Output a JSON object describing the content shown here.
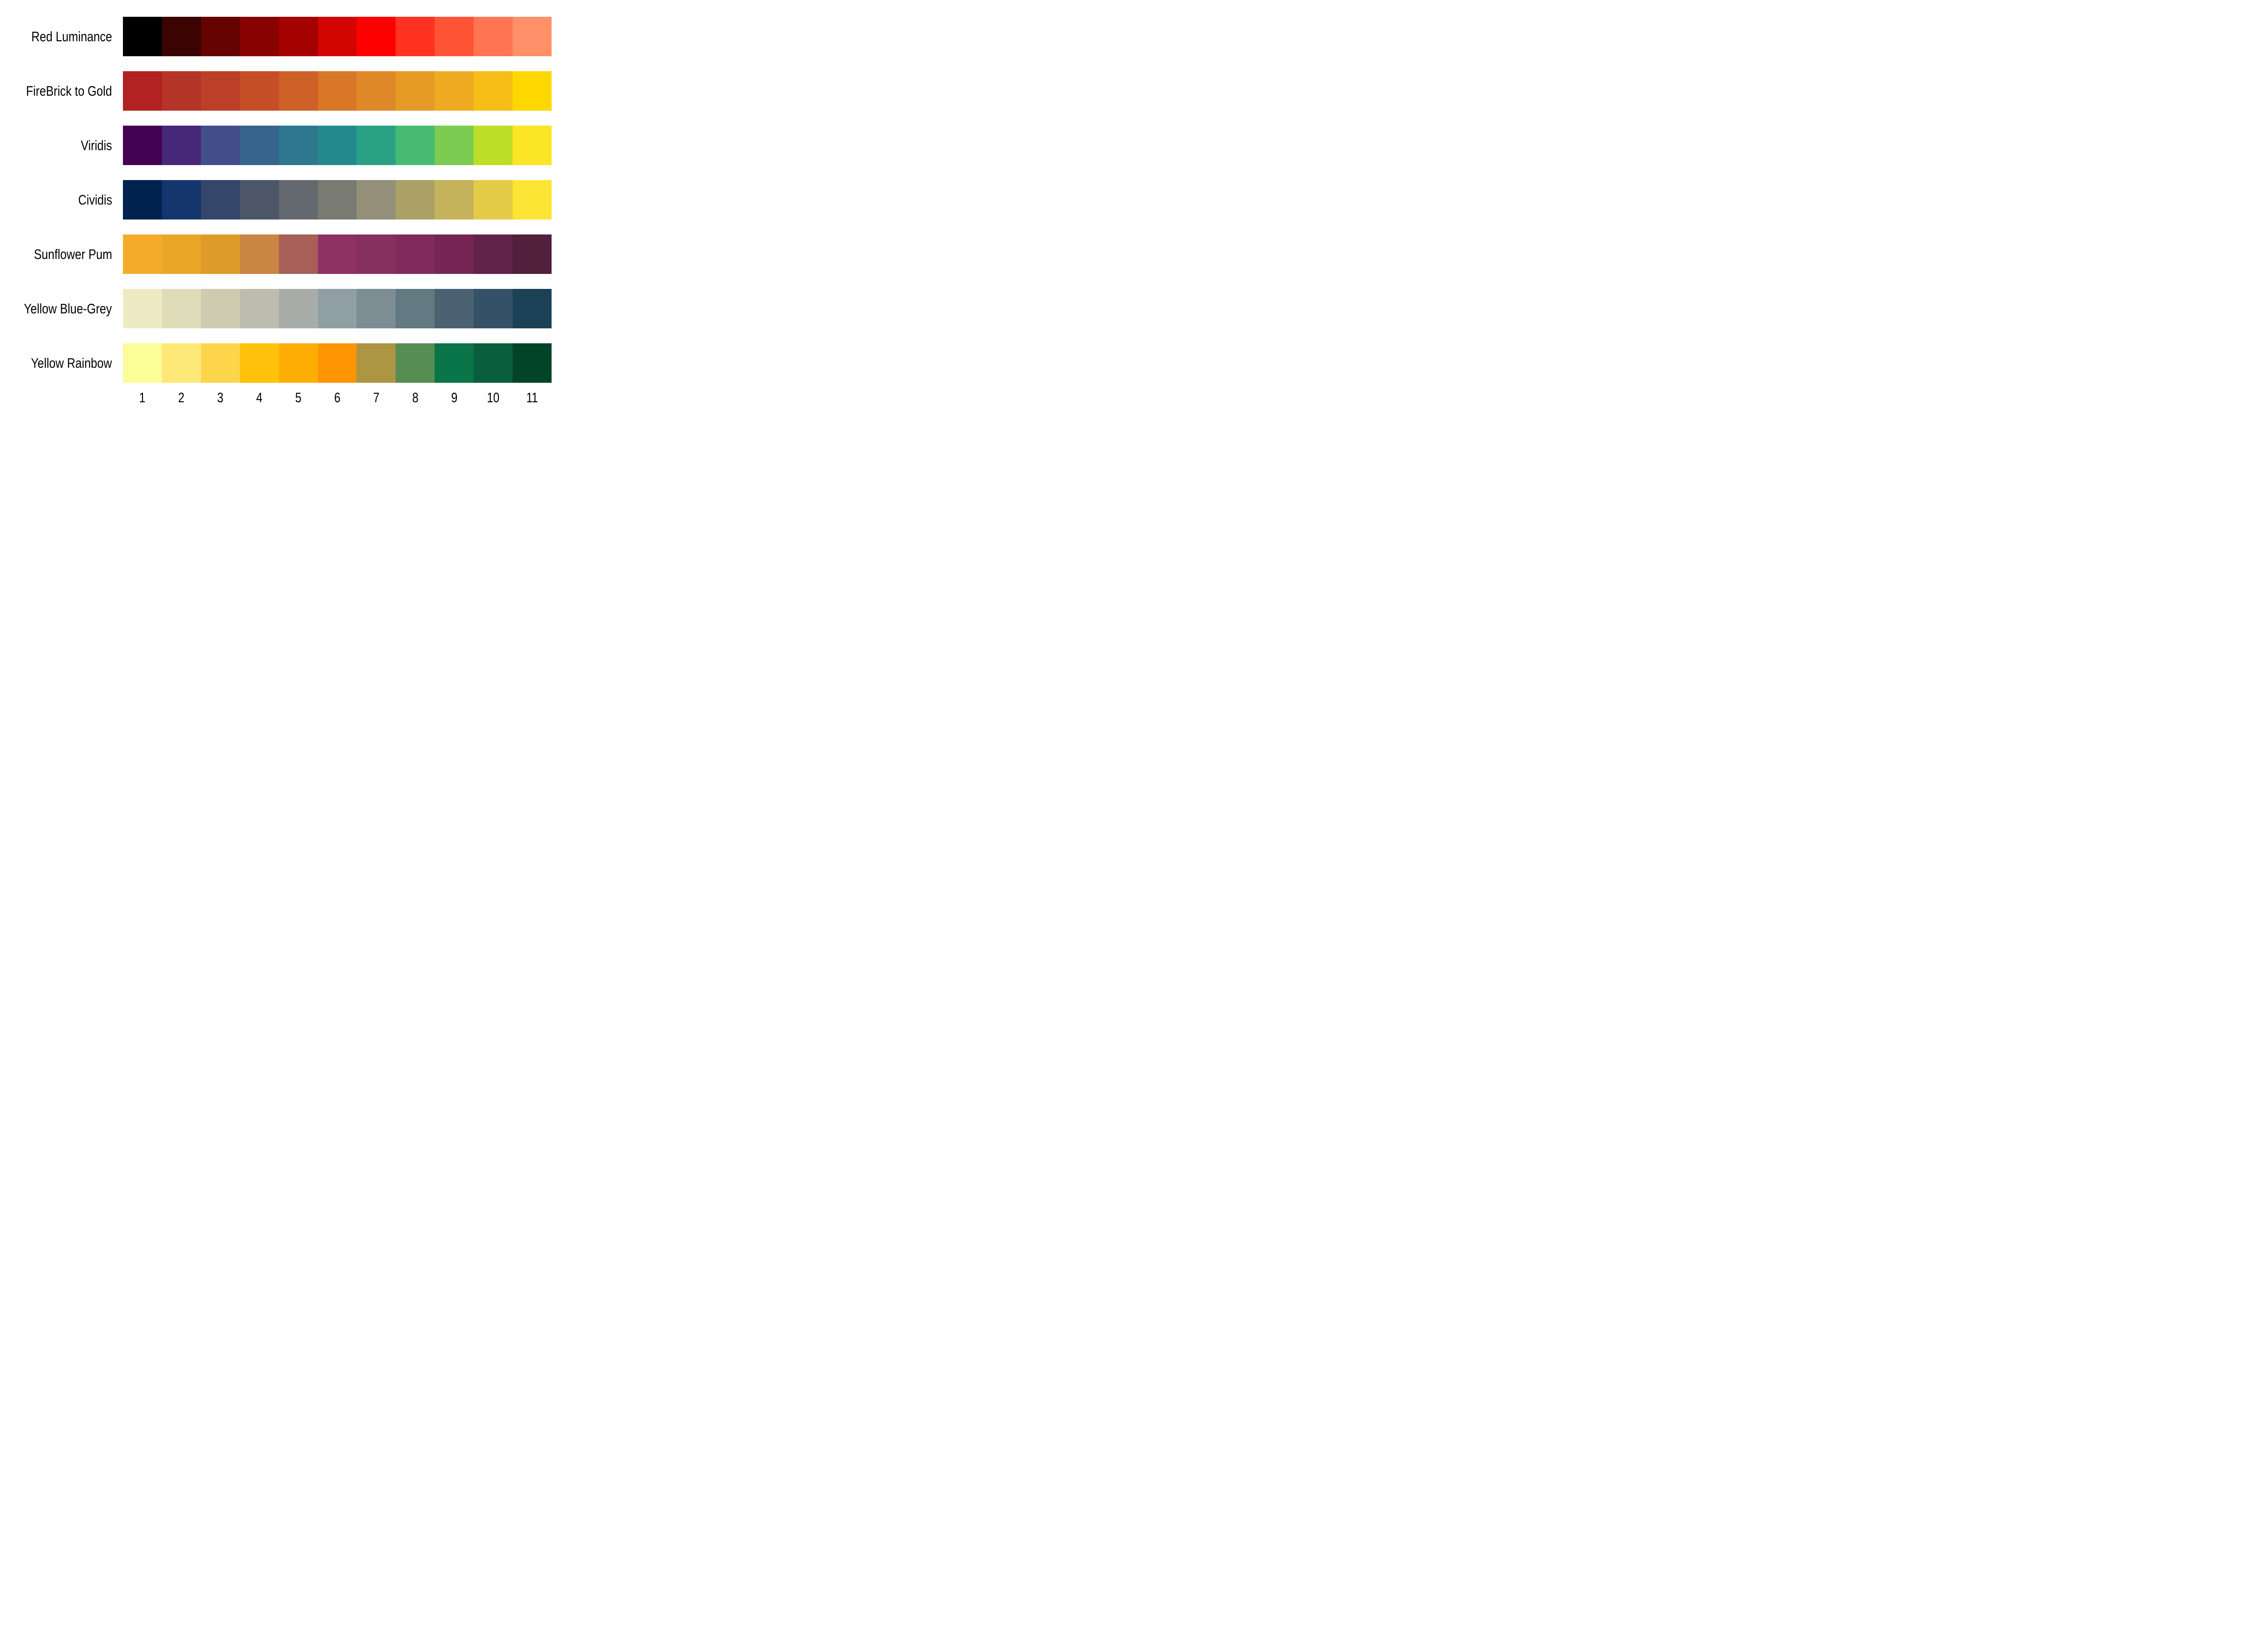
{
  "figure": {
    "background": "#FFFFFF",
    "text_color": "#000000"
  },
  "chart_data": {
    "type": "heatmap",
    "title": "",
    "subtitle": "",
    "description": "Comparison of seven discrete color palettes, each with 11 ordered swatches",
    "legend": "none",
    "grid": false,
    "axis_lines": false,
    "x_tick_labels": [
      "1",
      "2",
      "3",
      "4",
      "5",
      "6",
      "7",
      "8",
      "9",
      "10",
      "11"
    ],
    "rows": [
      {
        "label": "Red Luminance",
        "colors": [
          "#000000",
          "#3B0400",
          "#650301",
          "#880201",
          "#A40100",
          "#D30502",
          "#FE0000",
          "#FF3221",
          "#FF5335",
          "#FF7551",
          "#FF9068"
        ]
      },
      {
        "label": "FireBrick to Gold",
        "colors": [
          "#B22222",
          "#B43427",
          "#BC3F28",
          "#C54E27",
          "#CE6127",
          "#D97627",
          "#DF8827",
          "#E69A25",
          "#EEAB22",
          "#F6BE16",
          "#FFD700"
        ]
      },
      {
        "label": "Viridis",
        "colors": [
          "#440154",
          "#462879",
          "#424E87",
          "#36648D",
          "#2D788E",
          "#24898D",
          "#2AA184",
          "#48BA72",
          "#7CCC51",
          "#BDDE26",
          "#FCE525"
        ]
      },
      {
        "label": "Cividis",
        "colors": [
          "#00224E",
          "#15356E",
          "#35466B",
          "#4D5568",
          "#646970",
          "#797B72",
          "#938F78",
          "#ABA066",
          "#C4B35A",
          "#E3CB47",
          "#FEE434"
        ]
      },
      {
        "label": "Sunflower Pum",
        "colors": [
          "#F5AC2A",
          "#EAA627",
          "#DD9B28",
          "#C98542",
          "#A75F57",
          "#8D3263",
          "#86305F",
          "#7F2C5C",
          "#752655",
          "#61234A",
          "#521F3D"
        ]
      },
      {
        "label": "Yellow Blue-Grey",
        "colors": [
          "#EEEBC4",
          "#DFDCBA",
          "#CECBB1",
          "#BCBDAF",
          "#A8ADA9",
          "#8F9FA3",
          "#7C8D93",
          "#627A81",
          "#4A6272",
          "#345167",
          "#1B4156"
        ]
      },
      {
        "label": "Yellow Rainbow",
        "colors": [
          "#FAFD98",
          "#FEE877",
          "#FDD54B",
          "#FFC20A",
          "#FEAD05",
          "#FF9502",
          "#AC9543",
          "#578D52",
          "#097549",
          "#095F3D",
          "#014428"
        ]
      }
    ]
  }
}
